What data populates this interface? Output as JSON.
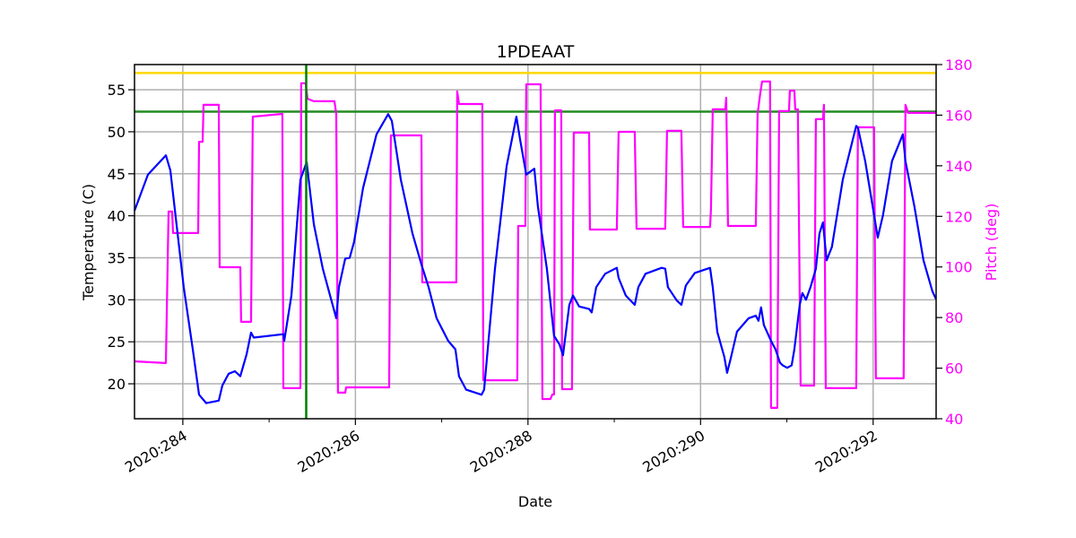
{
  "chart_data": {
    "type": "line",
    "title": "1PDEAAT",
    "xlabel": "Date",
    "ylabel": "Temperature (C)",
    "y2label": "Pitch (deg)",
    "xlim": [
      283.44,
      292.73
    ],
    "ylim": [
      15.84,
      58.0
    ],
    "y2lim": [
      40,
      180
    ],
    "grid": true,
    "x_ticks": [
      284,
      286,
      288,
      290,
      292
    ],
    "x_tick_labels": [
      "2020:284",
      "2020:286",
      "2020:288",
      "2020:290",
      "2020:292"
    ],
    "x_minor_ticks": [
      285,
      287,
      289,
      291
    ],
    "y_ticks": [
      20,
      25,
      30,
      35,
      40,
      45,
      50,
      55
    ],
    "y2_ticks": [
      40,
      60,
      80,
      100,
      120,
      140,
      160,
      180
    ],
    "colors": {
      "temperature": "#0000ff",
      "pitch": "#ff00ff",
      "upper_limit": "#ffd700",
      "planning_limit": "#228b22",
      "now_marker": "#008000",
      "grid": "#b0b0b0"
    },
    "reference_lines": {
      "upper_limit_temp": 57.0,
      "planning_limit_temp": 52.4,
      "vertical_marker_day": 285.43
    },
    "series": [
      {
        "axis": "left",
        "points": [
          [
            283.44,
            40.6
          ],
          [
            283.596,
            44.9
          ],
          [
            283.804,
            47.2
          ],
          [
            283.856,
            45.4
          ],
          [
            284.011,
            31.5
          ],
          [
            284.115,
            24.1
          ],
          [
            284.188,
            18.7
          ],
          [
            284.271,
            17.7
          ],
          [
            284.417,
            18.0
          ],
          [
            284.458,
            19.8
          ],
          [
            284.531,
            21.2
          ],
          [
            284.604,
            21.5
          ],
          [
            284.666,
            20.9
          ],
          [
            284.739,
            23.5
          ],
          [
            284.791,
            26.1
          ],
          [
            284.822,
            25.5
          ],
          [
            285.165,
            25.9
          ],
          [
            285.175,
            25.1
          ],
          [
            285.258,
            30.5
          ],
          [
            285.362,
            44.3
          ],
          [
            285.435,
            46.4
          ],
          [
            285.518,
            39.0
          ],
          [
            285.622,
            33.7
          ],
          [
            285.778,
            27.8
          ],
          [
            285.809,
            31.5
          ],
          [
            285.882,
            34.9
          ],
          [
            285.934,
            35.0
          ],
          [
            285.985,
            36.9
          ],
          [
            286.089,
            43.3
          ],
          [
            286.245,
            49.7
          ],
          [
            286.38,
            52.1
          ],
          [
            286.422,
            51.3
          ],
          [
            286.526,
            44.3
          ],
          [
            286.661,
            37.9
          ],
          [
            286.765,
            34.2
          ],
          [
            286.848,
            31.5
          ],
          [
            286.941,
            27.8
          ],
          [
            287.076,
            25.1
          ],
          [
            287.159,
            24.1
          ],
          [
            287.201,
            20.9
          ],
          [
            287.284,
            19.3
          ],
          [
            287.461,
            18.7
          ],
          [
            287.492,
            19.3
          ],
          [
            287.617,
            33.7
          ],
          [
            287.752,
            45.9
          ],
          [
            287.866,
            51.8
          ],
          [
            287.908,
            49.1
          ],
          [
            287.98,
            44.9
          ],
          [
            288.074,
            45.6
          ],
          [
            288.115,
            41.1
          ],
          [
            288.219,
            33.7
          ],
          [
            288.302,
            25.7
          ],
          [
            288.365,
            24.7
          ],
          [
            288.406,
            23.4
          ],
          [
            288.479,
            29.4
          ],
          [
            288.521,
            30.5
          ],
          [
            288.593,
            29.2
          ],
          [
            288.708,
            28.9
          ],
          [
            288.739,
            28.5
          ],
          [
            288.791,
            31.5
          ],
          [
            288.895,
            33.1
          ],
          [
            289.03,
            33.8
          ],
          [
            289.05,
            32.6
          ],
          [
            289.134,
            30.5
          ],
          [
            289.237,
            29.4
          ],
          [
            289.279,
            31.5
          ],
          [
            289.362,
            33.1
          ],
          [
            289.549,
            33.8
          ],
          [
            289.591,
            33.7
          ],
          [
            289.622,
            31.5
          ],
          [
            289.726,
            29.9
          ],
          [
            289.778,
            29.4
          ],
          [
            289.83,
            31.7
          ],
          [
            289.934,
            33.2
          ],
          [
            290.11,
            33.8
          ],
          [
            290.141,
            31.5
          ],
          [
            290.193,
            26.2
          ],
          [
            290.276,
            23.2
          ],
          [
            290.308,
            21.3
          ],
          [
            290.349,
            23.0
          ],
          [
            290.422,
            26.2
          ],
          [
            290.557,
            27.8
          ],
          [
            290.64,
            28.1
          ],
          [
            290.671,
            27.5
          ],
          [
            290.702,
            29.1
          ],
          [
            290.734,
            27.0
          ],
          [
            290.817,
            25.1
          ],
          [
            290.869,
            24.1
          ],
          [
            290.921,
            22.5
          ],
          [
            290.952,
            22.2
          ],
          [
            291.004,
            21.9
          ],
          [
            291.056,
            22.2
          ],
          [
            291.087,
            24.1
          ],
          [
            291.149,
            29.4
          ],
          [
            291.18,
            30.8
          ],
          [
            291.222,
            30.0
          ],
          [
            291.274,
            31.5
          ],
          [
            291.336,
            33.7
          ],
          [
            291.378,
            37.9
          ],
          [
            291.419,
            39.2
          ],
          [
            291.461,
            34.7
          ],
          [
            291.523,
            36.3
          ],
          [
            291.648,
            44.3
          ],
          [
            291.804,
            50.7
          ],
          [
            291.824,
            50.5
          ],
          [
            291.908,
            46.5
          ],
          [
            292.011,
            40.1
          ],
          [
            292.053,
            37.4
          ],
          [
            292.115,
            40.1
          ],
          [
            292.219,
            46.5
          ],
          [
            292.344,
            49.7
          ],
          [
            292.375,
            46.5
          ],
          [
            292.479,
            41.1
          ],
          [
            292.583,
            34.7
          ],
          [
            292.687,
            31.0
          ],
          [
            292.728,
            30.1
          ]
        ]
      },
      {
        "axis": "right",
        "points": [
          [
            283.44,
            62.7
          ],
          [
            283.804,
            62.0
          ],
          [
            283.835,
            121.9
          ],
          [
            283.876,
            121.9
          ],
          [
            283.887,
            113.4
          ],
          [
            284.178,
            113.4
          ],
          [
            284.188,
            149.5
          ],
          [
            284.23,
            149.5
          ],
          [
            284.24,
            164.1
          ],
          [
            284.417,
            164.1
          ],
          [
            284.427,
            99.9
          ],
          [
            284.666,
            99.9
          ],
          [
            284.676,
            78.3
          ],
          [
            284.791,
            78.3
          ],
          [
            284.811,
            159.4
          ],
          [
            285.154,
            160.5
          ],
          [
            285.165,
            52.1
          ],
          [
            285.362,
            52.1
          ],
          [
            285.372,
            172.6
          ],
          [
            285.424,
            172.6
          ],
          [
            285.445,
            166.5
          ],
          [
            285.518,
            165.5
          ],
          [
            285.757,
            165.5
          ],
          [
            285.778,
            160.5
          ],
          [
            285.798,
            50.3
          ],
          [
            285.882,
            50.3
          ],
          [
            285.892,
            52.4
          ],
          [
            286.391,
            52.4
          ],
          [
            286.411,
            152.0
          ],
          [
            286.765,
            152.0
          ],
          [
            286.775,
            93.9
          ],
          [
            287.17,
            93.9
          ],
          [
            287.18,
            169.4
          ],
          [
            287.201,
            164.4
          ],
          [
            287.471,
            164.4
          ],
          [
            287.482,
            55.2
          ],
          [
            287.876,
            55.2
          ],
          [
            287.887,
            116.2
          ],
          [
            287.97,
            116.2
          ],
          [
            287.98,
            172.2
          ],
          [
            288.146,
            172.2
          ],
          [
            288.167,
            47.8
          ],
          [
            288.261,
            47.8
          ],
          [
            288.282,
            49.6
          ],
          [
            288.302,
            49.6
          ],
          [
            288.313,
            161.9
          ],
          [
            288.385,
            161.9
          ],
          [
            288.396,
            51.7
          ],
          [
            288.51,
            51.7
          ],
          [
            288.531,
            153.1
          ],
          [
            288.708,
            153.1
          ],
          [
            288.718,
            114.8
          ],
          [
            289.03,
            114.8
          ],
          [
            289.05,
            153.4
          ],
          [
            289.237,
            153.4
          ],
          [
            289.258,
            115.1
          ],
          [
            289.591,
            115.1
          ],
          [
            289.612,
            153.8
          ],
          [
            289.778,
            153.8
          ],
          [
            289.799,
            115.8
          ],
          [
            290.11,
            115.8
          ],
          [
            290.121,
            122.9
          ],
          [
            290.141,
            162.3
          ],
          [
            290.287,
            162.3
          ],
          [
            290.297,
            166.9
          ],
          [
            290.318,
            116.2
          ],
          [
            290.64,
            116.2
          ],
          [
            290.661,
            160.5
          ],
          [
            290.692,
            168.7
          ],
          [
            290.713,
            173.3
          ],
          [
            290.806,
            173.3
          ],
          [
            290.817,
            44.3
          ],
          [
            290.89,
            44.3
          ],
          [
            290.91,
            161.6
          ],
          [
            291.025,
            161.6
          ],
          [
            291.035,
            169.7
          ],
          [
            291.087,
            169.7
          ],
          [
            291.097,
            162.3
          ],
          [
            291.128,
            162.3
          ],
          [
            291.16,
            53.1
          ],
          [
            291.316,
            53.1
          ],
          [
            291.336,
            158.4
          ],
          [
            291.419,
            158.4
          ],
          [
            291.43,
            164.1
          ],
          [
            291.451,
            52.1
          ],
          [
            291.804,
            52.1
          ],
          [
            291.824,
            155.2
          ],
          [
            292.011,
            155.2
          ],
          [
            292.032,
            56.0
          ],
          [
            292.354,
            56.0
          ],
          [
            292.375,
            164.1
          ],
          [
            292.406,
            160.9
          ],
          [
            292.728,
            160.9
          ]
        ]
      }
    ]
  }
}
